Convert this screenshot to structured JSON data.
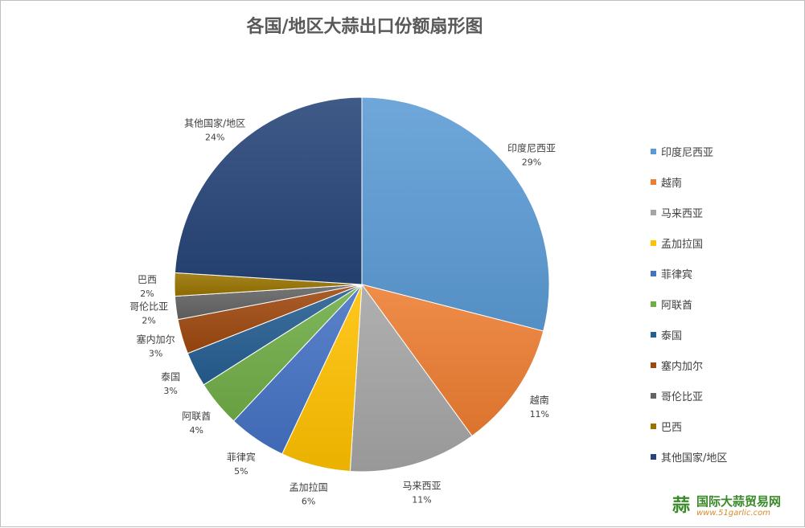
{
  "chart_data": {
    "type": "pie",
    "title": "各国/地区大蒜出口份额扇形图",
    "start_angle_deg": 0,
    "direction": "clockwise",
    "legend_placement": "right",
    "slices": [
      {
        "label": "印度尼西亚",
        "value": 29,
        "value_label": "29%",
        "color": "#5b9bd5"
      },
      {
        "label": "越南",
        "value": 11,
        "value_label": "11%",
        "color": "#ed7d31"
      },
      {
        "label": "马来西亚",
        "value": 11,
        "value_label": "11%",
        "color": "#a5a5a5"
      },
      {
        "label": "孟加拉国",
        "value": 6,
        "value_label": "6%",
        "color": "#ffc000"
      },
      {
        "label": "菲律宾",
        "value": 5,
        "value_label": "5%",
        "color": "#4472c4"
      },
      {
        "label": "阿联酋",
        "value": 4,
        "value_label": "4%",
        "color": "#70ad47"
      },
      {
        "label": "泰国",
        "value": 3,
        "value_label": "3%",
        "color": "#255e91"
      },
      {
        "label": "塞内加尔",
        "value": 3,
        "value_label": "3%",
        "color": "#9e480e"
      },
      {
        "label": "哥伦比亚",
        "value": 2,
        "value_label": "2%",
        "color": "#636363"
      },
      {
        "label": "巴西",
        "value": 2,
        "value_label": "2%",
        "color": "#997300"
      },
      {
        "label": "其他国家/地区",
        "value": 24,
        "value_label": "24%",
        "color": "#264478"
      }
    ]
  },
  "watermark": {
    "icon": "蒜",
    "name": "国际大蒜贸易网",
    "url": "www.51garlic.com"
  }
}
